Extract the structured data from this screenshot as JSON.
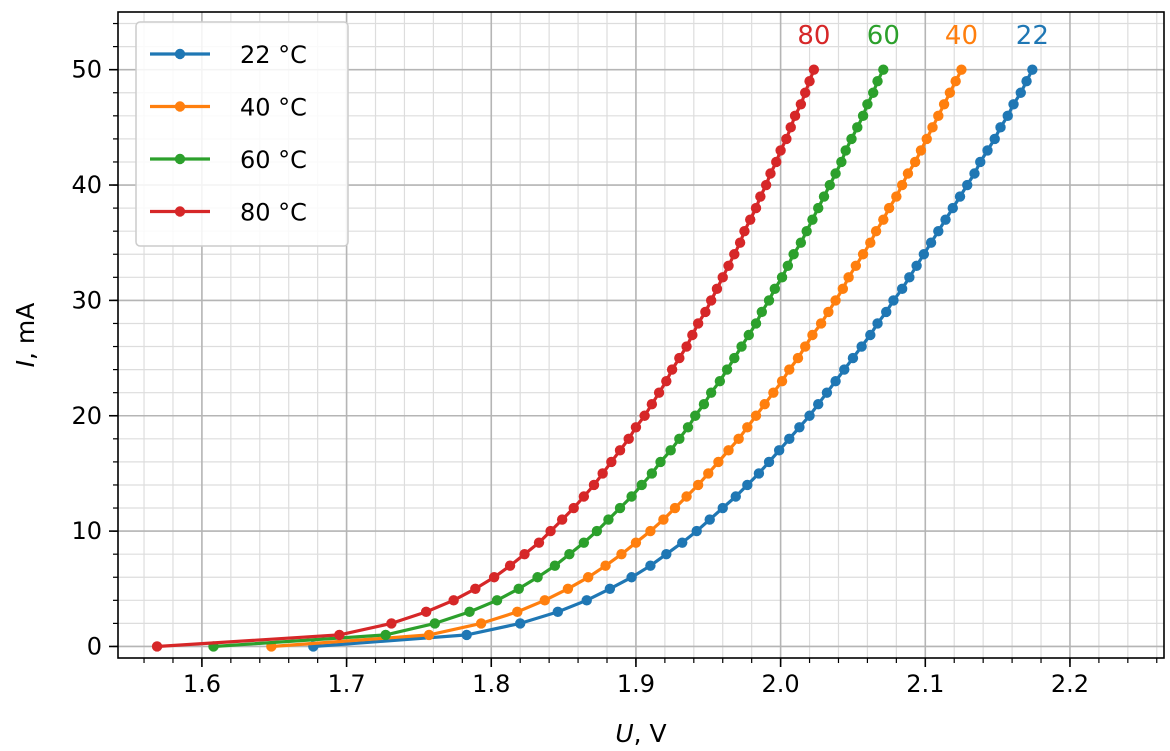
{
  "chart_data": {
    "type": "line",
    "title": "",
    "xlabel_var": "U",
    "xlabel_unit": ", V",
    "ylabel_var": "I",
    "ylabel_unit": ", mA",
    "xlim": [
      1.542,
      2.265
    ],
    "ylim": [
      -1,
      55
    ],
    "x_major_ticks": [
      1.6,
      1.7,
      1.8,
      1.9,
      2.0,
      2.1,
      2.2
    ],
    "x_tick_labels": [
      "1.6",
      "1.7",
      "1.8",
      "1.9",
      "2.0",
      "2.1",
      "2.2"
    ],
    "x_minor_step": 0.02,
    "y_major_ticks": [
      0,
      10,
      20,
      30,
      40,
      50
    ],
    "y_tick_labels": [
      "0",
      "10",
      "20",
      "30",
      "40",
      "50"
    ],
    "y_minor_step": 2,
    "grid": true,
    "legend_position": "top-left",
    "current_levels_mA": [
      0,
      1,
      2,
      3,
      4,
      5,
      6,
      7,
      8,
      9,
      10,
      11,
      12,
      13,
      14,
      15,
      16,
      17,
      18,
      19,
      20,
      21,
      22,
      23,
      24,
      25,
      26,
      27,
      28,
      29,
      30,
      31,
      32,
      33,
      34,
      35,
      36,
      37,
      38,
      39,
      40,
      41,
      42,
      43,
      44,
      45,
      46,
      47,
      48,
      49,
      50
    ],
    "series": [
      {
        "name": "22 °C",
        "end_label": "22",
        "color": "#1f77b4",
        "x": [
          1.677,
          1.783,
          1.82,
          1.846,
          1.866,
          1.882,
          1.897,
          1.91,
          1.921,
          1.932,
          1.942,
          1.951,
          1.96,
          1.969,
          1.977,
          1.985,
          1.992,
          1.999,
          2.006,
          2.013,
          2.02,
          2.026,
          2.032,
          2.038,
          2.044,
          2.05,
          2.056,
          2.062,
          2.067,
          2.073,
          2.078,
          2.084,
          2.089,
          2.094,
          2.099,
          2.104,
          2.109,
          2.114,
          2.119,
          2.124,
          2.129,
          2.134,
          2.138,
          2.143,
          2.148,
          2.152,
          2.157,
          2.161,
          2.166,
          2.17,
          2.174
        ],
        "y": [
          0,
          1,
          2,
          3,
          4,
          5,
          6,
          7,
          8,
          9,
          10,
          11,
          12,
          13,
          14,
          15,
          16,
          17,
          18,
          19,
          20,
          21,
          22,
          23,
          24,
          25,
          26,
          27,
          28,
          29,
          30,
          31,
          32,
          33,
          34,
          35,
          36,
          37,
          38,
          39,
          40,
          41,
          42,
          43,
          44,
          45,
          46,
          47,
          48,
          49,
          50
        ]
      },
      {
        "name": "40 °C",
        "end_label": "40",
        "color": "#ff7f0e",
        "x": [
          1.648,
          1.757,
          1.793,
          1.818,
          1.837,
          1.853,
          1.867,
          1.879,
          1.89,
          1.9,
          1.91,
          1.919,
          1.927,
          1.935,
          1.943,
          1.95,
          1.957,
          1.964,
          1.971,
          1.977,
          1.983,
          1.989,
          1.995,
          2.001,
          2.006,
          2.012,
          2.017,
          2.022,
          2.028,
          2.033,
          2.038,
          2.043,
          2.047,
          2.052,
          2.057,
          2.062,
          2.066,
          2.071,
          2.075,
          2.08,
          2.084,
          2.088,
          2.093,
          2.097,
          2.101,
          2.105,
          2.109,
          2.113,
          2.117,
          2.121,
          2.125
        ],
        "y": [
          0,
          1,
          2,
          3,
          4,
          5,
          6,
          7,
          8,
          9,
          10,
          11,
          12,
          13,
          14,
          15,
          16,
          17,
          18,
          19,
          20,
          21,
          22,
          23,
          24,
          25,
          26,
          27,
          28,
          29,
          30,
          31,
          32,
          33,
          34,
          35,
          36,
          37,
          38,
          39,
          40,
          41,
          42,
          43,
          44,
          45,
          46,
          47,
          48,
          49,
          50
        ]
      },
      {
        "name": "60 °C",
        "end_label": "60",
        "color": "#2ca02c",
        "x": [
          1.608,
          1.727,
          1.761,
          1.785,
          1.804,
          1.819,
          1.832,
          1.844,
          1.854,
          1.864,
          1.873,
          1.881,
          1.889,
          1.897,
          1.904,
          1.911,
          1.917,
          1.924,
          1.93,
          1.936,
          1.941,
          1.947,
          1.952,
          1.958,
          1.963,
          1.968,
          1.973,
          1.978,
          1.983,
          1.987,
          1.992,
          1.996,
          2.001,
          2.005,
          2.009,
          2.014,
          2.018,
          2.022,
          2.026,
          2.03,
          2.034,
          2.038,
          2.042,
          2.045,
          2.049,
          2.053,
          2.057,
          2.06,
          2.064,
          2.067,
          2.071
        ],
        "y": [
          0,
          1,
          2,
          3,
          4,
          5,
          6,
          7,
          8,
          9,
          10,
          11,
          12,
          13,
          14,
          15,
          16,
          17,
          18,
          19,
          20,
          21,
          22,
          23,
          24,
          25,
          26,
          27,
          28,
          29,
          30,
          31,
          32,
          33,
          34,
          35,
          36,
          37,
          38,
          39,
          40,
          41,
          42,
          43,
          44,
          45,
          46,
          47,
          48,
          49,
          50
        ]
      },
      {
        "name": "80 °C",
        "end_label": "80",
        "color": "#d62728",
        "x": [
          1.569,
          1.695,
          1.731,
          1.755,
          1.774,
          1.789,
          1.802,
          1.813,
          1.823,
          1.833,
          1.841,
          1.849,
          1.857,
          1.864,
          1.871,
          1.877,
          1.883,
          1.889,
          1.895,
          1.9,
          1.906,
          1.911,
          1.916,
          1.921,
          1.925,
          1.93,
          1.935,
          1.939,
          1.943,
          1.948,
          1.952,
          1.956,
          1.96,
          1.964,
          1.968,
          1.972,
          1.975,
          1.979,
          1.983,
          1.986,
          1.99,
          1.993,
          1.997,
          2.0,
          2.004,
          2.007,
          2.01,
          2.014,
          2.017,
          2.02,
          2.023
        ],
        "y": [
          0,
          1,
          2,
          3,
          4,
          5,
          6,
          7,
          8,
          9,
          10,
          11,
          12,
          13,
          14,
          15,
          16,
          17,
          18,
          19,
          20,
          21,
          22,
          23,
          24,
          25,
          26,
          27,
          28,
          29,
          30,
          31,
          32,
          33,
          34,
          35,
          36,
          37,
          38,
          39,
          40,
          41,
          42,
          43,
          44,
          45,
          46,
          47,
          48,
          49,
          50
        ]
      }
    ]
  }
}
